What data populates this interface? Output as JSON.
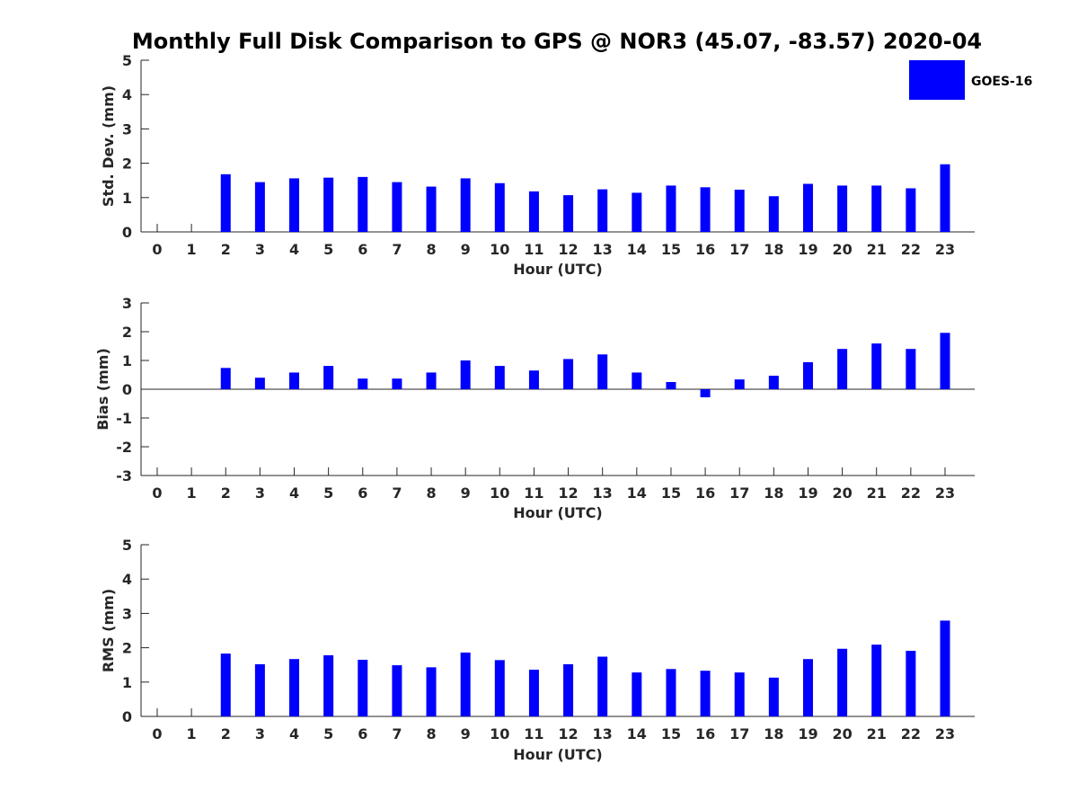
{
  "title": "Monthly Full Disk Comparison to GPS @ NOR3 (45.07, -83.57) 2020-04",
  "legend": {
    "label": "GOES-16",
    "color": "#0000ff",
    "placement": "top-right"
  },
  "chart_data": [
    {
      "type": "bar",
      "ylabel": "Std. Dev. (mm)",
      "xlabel": "Hour (UTC)",
      "ylim": [
        0,
        5
      ],
      "yticks": [
        "0",
        "1",
        "2",
        "3",
        "4",
        "5"
      ],
      "categories": [
        "0",
        "1",
        "2",
        "3",
        "4",
        "5",
        "6",
        "7",
        "8",
        "9",
        "10",
        "11",
        "12",
        "13",
        "14",
        "15",
        "16",
        "17",
        "18",
        "19",
        "20",
        "21",
        "22",
        "23"
      ],
      "series": [
        {
          "name": "GOES-16",
          "values": [
            0,
            0,
            1.68,
            1.45,
            1.56,
            1.58,
            1.6,
            1.45,
            1.32,
            1.56,
            1.42,
            1.18,
            1.07,
            1.24,
            1.14,
            1.35,
            1.3,
            1.23,
            1.04,
            1.4,
            1.35,
            1.35,
            1.27,
            1.97
          ]
        }
      ]
    },
    {
      "type": "bar",
      "ylabel": "Bias (mm)",
      "xlabel": "Hour (UTC)",
      "ylim": [
        -3,
        3
      ],
      "yticks": [
        "-3",
        "-2",
        "-1",
        "0",
        "1",
        "2",
        "3"
      ],
      "categories": [
        "0",
        "1",
        "2",
        "3",
        "4",
        "5",
        "6",
        "7",
        "8",
        "9",
        "10",
        "11",
        "12",
        "13",
        "14",
        "15",
        "16",
        "17",
        "18",
        "19",
        "20",
        "21",
        "22",
        "23"
      ],
      "series": [
        {
          "name": "GOES-16",
          "values": [
            0,
            0,
            0.74,
            0.4,
            0.58,
            0.81,
            0.37,
            0.37,
            0.58,
            1.0,
            0.81,
            0.65,
            1.05,
            1.21,
            0.58,
            0.25,
            -0.28,
            0.34,
            0.47,
            0.94,
            1.4,
            1.59,
            1.4,
            1.96
          ]
        }
      ]
    },
    {
      "type": "bar",
      "ylabel": "RMS (mm)",
      "xlabel": "Hour (UTC)",
      "ylim": [
        0,
        5
      ],
      "yticks": [
        "0",
        "1",
        "2",
        "3",
        "4",
        "5"
      ],
      "categories": [
        "0",
        "1",
        "2",
        "3",
        "4",
        "5",
        "6",
        "7",
        "8",
        "9",
        "10",
        "11",
        "12",
        "13",
        "14",
        "15",
        "16",
        "17",
        "18",
        "19",
        "20",
        "21",
        "22",
        "23"
      ],
      "series": [
        {
          "name": "GOES-16",
          "values": [
            0,
            0,
            1.83,
            1.52,
            1.67,
            1.78,
            1.65,
            1.49,
            1.43,
            1.86,
            1.64,
            1.36,
            1.52,
            1.74,
            1.28,
            1.38,
            1.33,
            1.28,
            1.13,
            1.67,
            1.97,
            2.09,
            1.91,
            2.79
          ]
        }
      ]
    }
  ]
}
